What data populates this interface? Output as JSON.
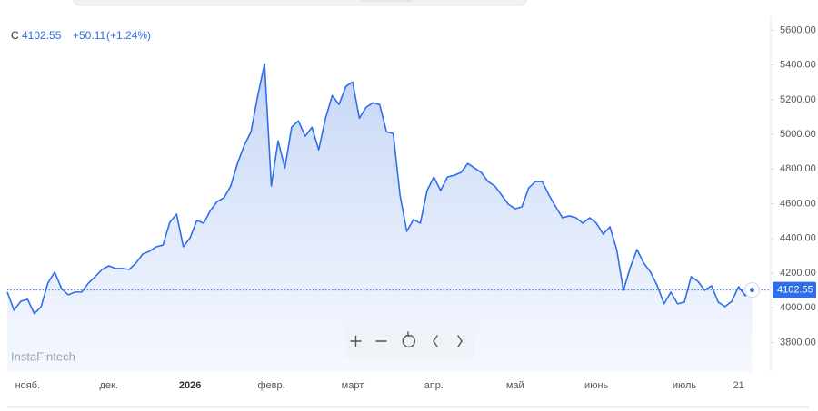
{
  "chart_data": {
    "type": "line",
    "fill": true,
    "symbol": "C",
    "last_label": "4102.55",
    "change": "+50.11",
    "change_pct": "(+1.24%)",
    "watermark": "InstaFintech",
    "color": "#2f6ee8",
    "categories": [
      null,
      null,
      null,
      "нояб.",
      null,
      null,
      null,
      null,
      null,
      null,
      null,
      null,
      null,
      null,
      null,
      "дек.",
      null,
      null,
      null,
      null,
      null,
      null,
      null,
      null,
      null,
      null,
      null,
      "2026",
      null,
      null,
      null,
      null,
      null,
      null,
      null,
      null,
      null,
      null,
      null,
      "февр.",
      null,
      null,
      null,
      null,
      null,
      null,
      null,
      null,
      null,
      null,
      null,
      "март",
      null,
      null,
      null,
      null,
      null,
      null,
      null,
      null,
      null,
      null,
      null,
      "апр.",
      null,
      null,
      null,
      null,
      null,
      null,
      null,
      null,
      null,
      null,
      null,
      "май",
      null,
      null,
      null,
      null,
      null,
      null,
      null,
      null,
      null,
      null,
      null,
      "июнь",
      null,
      null,
      null,
      null,
      null,
      null,
      null,
      null,
      null,
      null,
      null,
      null,
      "июль",
      null,
      null,
      null,
      null,
      null,
      null,
      null,
      "21",
      null,
      null
    ],
    "values": [
      4091,
      3986,
      4038,
      4049,
      3966,
      4007,
      4143,
      4206,
      4112,
      4075,
      4091,
      4091,
      4143,
      4180,
      4221,
      4242,
      4227,
      4227,
      4221,
      4258,
      4310,
      4326,
      4352,
      4362,
      4493,
      4540,
      4352,
      4404,
      4504,
      4488,
      4561,
      4613,
      4634,
      4702,
      4832,
      4937,
      5015,
      5224,
      5407,
      4702,
      4963,
      4806,
      5041,
      5078,
      4989,
      5041,
      4911,
      5093,
      5224,
      5172,
      5276,
      5302,
      5093,
      5156,
      5182,
      5172,
      5015,
      5005,
      4650,
      4441,
      4509,
      4488,
      4676,
      4754,
      4676,
      4754,
      4764,
      4780,
      4832,
      4806,
      4780,
      4728,
      4702,
      4650,
      4597,
      4571,
      4582,
      4691,
      4728,
      4728,
      4650,
      4582,
      4519,
      4530,
      4519,
      4488,
      4519,
      4488,
      4425,
      4467,
      4336,
      4101,
      4232,
      4336,
      4258,
      4206,
      4127,
      4023,
      4091,
      4023,
      4033,
      4180,
      4153,
      4101,
      4127,
      4033,
      4007,
      4038,
      4122,
      4070,
      4102.55
    ],
    "ylim": [
      3630,
      5670
    ],
    "yticks": [
      {
        "value": 3800,
        "label": "3800.00"
      },
      {
        "value": 4000,
        "label": "4000.00"
      },
      {
        "value": 4200,
        "label": "4200.00"
      },
      {
        "value": 4400,
        "label": "4400.00"
      },
      {
        "value": 4600,
        "label": "4600.00"
      },
      {
        "value": 4800,
        "label": "4800.00"
      },
      {
        "value": 5000,
        "label": "5000.00"
      },
      {
        "value": 5200,
        "label": "5200.00"
      },
      {
        "value": 5400,
        "label": "5400.00"
      },
      {
        "value": 5600,
        "label": "5600.00"
      }
    ]
  }
}
